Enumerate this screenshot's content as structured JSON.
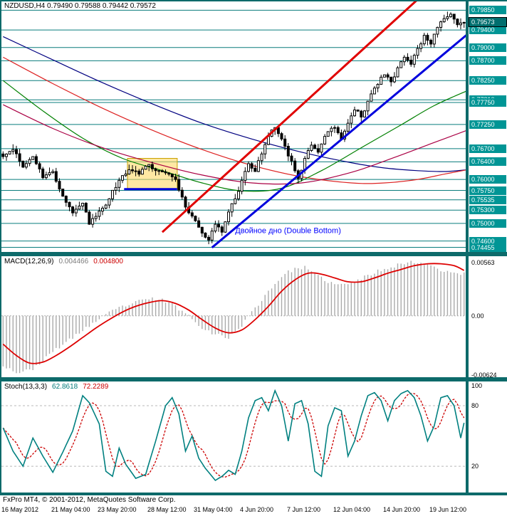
{
  "footer": {
    "copyright": "FxPro MT4, © 2001-2012, MetaQuotes Software Corp."
  },
  "colors": {
    "frame": "#0d6a6a",
    "grid_level": "#087c7c",
    "badge_bg": "#009595",
    "up_candle": "#ffffff",
    "down_candle": "#000000",
    "trend_red": "#e00000",
    "trend_blue": "#0000dd",
    "box_fill": "#ffd966",
    "box_stroke": "#c8a000",
    "macd_hist": "#aaaaaa",
    "macd_signal": "#dd0000",
    "stoch_k": "#008080",
    "stoch_d": "#cc0000",
    "annotation_blue": "#0000ff"
  },
  "chart_data": {
    "price": {
      "type": "candlestick",
      "title": "NZDUSD,H4 0.79490 0.79588 0.79442 0.79572",
      "symbol": "NZDUSD",
      "timeframe": "H4",
      "ohlc": {
        "open": "0.79490",
        "high": "0.79588",
        "low": "0.79442",
        "close": "0.79572"
      },
      "y_range": [
        0.7435,
        0.8005
      ],
      "bars": 140,
      "noise": {
        "seed": 11,
        "close_amp": 0.0011,
        "wick_amp": 0.0012
      },
      "close_anchors": [
        [
          0,
          0.7652
        ],
        [
          3,
          0.7668
        ],
        [
          6,
          0.7628
        ],
        [
          9,
          0.7652
        ],
        [
          12,
          0.7604
        ],
        [
          15,
          0.7618
        ],
        [
          18,
          0.7562
        ],
        [
          21,
          0.7524
        ],
        [
          24,
          0.7546
        ],
        [
          26,
          0.7498
        ],
        [
          29,
          0.7528
        ],
        [
          32,
          0.7556
        ],
        [
          35,
          0.7598
        ],
        [
          38,
          0.7622
        ],
        [
          41,
          0.7612
        ],
        [
          44,
          0.7634
        ],
        [
          47,
          0.762
        ],
        [
          50,
          0.7612
        ],
        [
          52,
          0.76
        ],
        [
          54,
          0.756
        ],
        [
          56,
          0.7524
        ],
        [
          58,
          0.7506
        ],
        [
          60,
          0.7478
        ],
        [
          62,
          0.7462
        ],
        [
          64,
          0.7498
        ],
        [
          66,
          0.748
        ],
        [
          68,
          0.7526
        ],
        [
          70,
          0.7556
        ],
        [
          72,
          0.7598
        ],
        [
          74,
          0.7636
        ],
        [
          76,
          0.7618
        ],
        [
          78,
          0.7658
        ],
        [
          80,
          0.7698
        ],
        [
          82,
          0.7718
        ],
        [
          84,
          0.7692
        ],
        [
          87,
          0.7642
        ],
        [
          89,
          0.7602
        ],
        [
          91,
          0.7648
        ],
        [
          93,
          0.7678
        ],
        [
          95,
          0.7662
        ],
        [
          97,
          0.7698
        ],
        [
          100,
          0.7718
        ],
        [
          102,
          0.7692
        ],
        [
          104,
          0.7728
        ],
        [
          106,
          0.7758
        ],
        [
          108,
          0.7742
        ],
        [
          110,
          0.7778
        ],
        [
          112,
          0.7808
        ],
        [
          115,
          0.7838
        ],
        [
          117,
          0.7822
        ],
        [
          119,
          0.7854
        ],
        [
          121,
          0.7878
        ],
        [
          123,
          0.7862
        ],
        [
          125,
          0.7898
        ],
        [
          127,
          0.7928
        ],
        [
          129,
          0.7908
        ],
        [
          131,
          0.7946
        ],
        [
          133,
          0.7966
        ],
        [
          135,
          0.7976
        ],
        [
          137,
          0.7952
        ],
        [
          139,
          0.79572
        ]
      ],
      "levels": [
        {
          "label": "0.79850",
          "price": 0.7985
        },
        {
          "label": "0.79400",
          "price": 0.794
        },
        {
          "label": "0.79000",
          "price": 0.79
        },
        {
          "label": "0.78700",
          "price": 0.787
        },
        {
          "label": "0.78250",
          "price": 0.7825
        },
        {
          "label": "0.77810",
          "price": 0.7781
        },
        {
          "label": "0.77750",
          "price": 0.7775
        },
        {
          "label": "0.77250",
          "price": 0.7725
        },
        {
          "label": "0.76700",
          "price": 0.767
        },
        {
          "label": "0.76400",
          "price": 0.764
        },
        {
          "label": "0.76000",
          "price": 0.76
        },
        {
          "label": "0.75750",
          "price": 0.7575
        },
        {
          "label": "0.75535",
          "price": 0.75535
        },
        {
          "label": "0.75300",
          "price": 0.753
        },
        {
          "label": "0.75000",
          "price": 0.75
        },
        {
          "label": "0.74600",
          "price": 0.746
        },
        {
          "label": "0.74455",
          "price": 0.74455
        }
      ],
      "current_price": {
        "label": "0.79573",
        "price": 0.79573
      },
      "moving_averages": [
        {
          "name": "ma-navy",
          "color": "#000080",
          "anchors": [
            [
              0,
              0.7925
            ],
            [
              15,
              0.7872
            ],
            [
              30,
              0.782
            ],
            [
              45,
              0.7772
            ],
            [
              60,
              0.7728
            ],
            [
              75,
              0.7692
            ],
            [
              90,
              0.7662
            ],
            [
              105,
              0.7638
            ],
            [
              115,
              0.7626
            ],
            [
              125,
              0.762
            ],
            [
              133,
              0.7618
            ],
            [
              140,
              0.7622
            ]
          ]
        },
        {
          "name": "ma-red",
          "color": "#dd2222",
          "anchors": [
            [
              0,
              0.7878
            ],
            [
              15,
              0.7818
            ],
            [
              30,
              0.7762
            ],
            [
              45,
              0.7712
            ],
            [
              60,
              0.7668
            ],
            [
              75,
              0.7632
            ],
            [
              90,
              0.7606
            ],
            [
              105,
              0.7592
            ],
            [
              115,
              0.7592
            ],
            [
              125,
              0.76
            ],
            [
              133,
              0.7612
            ],
            [
              140,
              0.7622
            ]
          ]
        },
        {
          "name": "ma-green",
          "color": "#008000",
          "anchors": [
            [
              0,
              0.7825
            ],
            [
              12,
              0.7756
            ],
            [
              24,
              0.7694
            ],
            [
              36,
              0.7648
            ],
            [
              48,
              0.762
            ],
            [
              60,
              0.7592
            ],
            [
              72,
              0.7574
            ],
            [
              84,
              0.758
            ],
            [
              96,
              0.762
            ],
            [
              108,
              0.7672
            ],
            [
              120,
              0.7724
            ],
            [
              130,
              0.7768
            ],
            [
              140,
              0.7802
            ]
          ]
        },
        {
          "name": "ma-crimson",
          "color": "#aa0044",
          "anchors": [
            [
              0,
              0.777
            ],
            [
              15,
              0.7716
            ],
            [
              30,
              0.7672
            ],
            [
              45,
              0.7638
            ],
            [
              60,
              0.761
            ],
            [
              75,
              0.7592
            ],
            [
              90,
              0.7592
            ],
            [
              105,
              0.7616
            ],
            [
              118,
              0.765
            ],
            [
              130,
              0.7684
            ],
            [
              140,
              0.7712
            ]
          ]
        }
      ],
      "trendlines": [
        {
          "name": "trendline-red",
          "color": "#e00000",
          "width": 3,
          "from": [
            48,
            0.748
          ],
          "to": [
            128,
            0.803
          ]
        },
        {
          "name": "trendline-blue",
          "color": "#0000dd",
          "width": 3,
          "from": [
            63,
            0.7445
          ],
          "to": [
            140,
            0.793
          ]
        }
      ],
      "support_segment": {
        "price": 0.7578,
        "from_bar": 36.5,
        "to_bar": 52.5,
        "width": 3
      },
      "pattern_box": {
        "from_bar": 38,
        "to_bar": 53,
        "price_top": 0.7648,
        "price_bottom": 0.7578
      },
      "annotation": {
        "text": "Двойное дно (Double Bottom)",
        "bar": 70,
        "price": 0.7478
      },
      "x_ticks": [
        {
          "label": "16 May 2012",
          "bar": 0
        },
        {
          "label": "21 May 04:00",
          "bar": 15
        },
        {
          "label": "23 May 20:00",
          "bar": 29
        },
        {
          "label": "28 May 12:00",
          "bar": 44
        },
        {
          "label": "31 May 04:00",
          "bar": 58
        },
        {
          "label": "4 Jun 20:00",
          "bar": 72
        },
        {
          "label": "7 Jun 12:00",
          "bar": 86
        },
        {
          "label": "12 Jun 04:00",
          "bar": 100
        },
        {
          "label": "14 Jun 20:00",
          "bar": 115
        },
        {
          "label": "19 Jun 12:00",
          "bar": 129
        }
      ]
    },
    "macd": {
      "type": "bar+line",
      "label": "MACD(12,26,9)",
      "value_main": "0.004466",
      "value_signal": "0.004800",
      "y_range": [
        -0.0065,
        0.0063
      ],
      "noise_seed": 23,
      "axis_labels": [
        {
          "text": "0.00563",
          "value": 0.00563
        },
        {
          "text": "0.00",
          "value": 0.0
        },
        {
          "text": "-0.00624",
          "value": -0.00624
        }
      ],
      "macd_anchors": [
        [
          0,
          -0.0052
        ],
        [
          4,
          -0.006
        ],
        [
          8,
          -0.0058
        ],
        [
          12,
          -0.0048
        ],
        [
          16,
          -0.0035
        ],
        [
          20,
          -0.0026
        ],
        [
          24,
          -0.0015
        ],
        [
          28,
          -0.0006
        ],
        [
          32,
          0.0003
        ],
        [
          36,
          0.001
        ],
        [
          40,
          0.0014
        ],
        [
          44,
          0.0018
        ],
        [
          48,
          0.0017
        ],
        [
          52,
          0.001
        ],
        [
          56,
          0.0
        ],
        [
          60,
          -0.0012
        ],
        [
          64,
          -0.002
        ],
        [
          68,
          -0.0023
        ],
        [
          72,
          -0.001
        ],
        [
          76,
          0.0008
        ],
        [
          80,
          0.0026
        ],
        [
          84,
          0.0042
        ],
        [
          88,
          0.005
        ],
        [
          91,
          0.0051
        ],
        [
          94,
          0.0044
        ],
        [
          97,
          0.0038
        ],
        [
          100,
          0.0033
        ],
        [
          104,
          0.0033
        ],
        [
          108,
          0.0039
        ],
        [
          112,
          0.0046
        ],
        [
          116,
          0.0051
        ],
        [
          120,
          0.0055
        ],
        [
          124,
          0.0057
        ],
        [
          128,
          0.0055
        ],
        [
          131,
          0.005
        ],
        [
          134,
          0.0047
        ],
        [
          137,
          0.0045
        ],
        [
          139,
          0.004466
        ]
      ],
      "signal_anchors": [
        [
          0,
          -0.003
        ],
        [
          4,
          -0.0042
        ],
        [
          8,
          -0.005
        ],
        [
          12,
          -0.0049
        ],
        [
          16,
          -0.0042
        ],
        [
          20,
          -0.0033
        ],
        [
          24,
          -0.0023
        ],
        [
          28,
          -0.0013
        ],
        [
          32,
          -0.0004
        ],
        [
          36,
          0.0004
        ],
        [
          40,
          0.001
        ],
        [
          44,
          0.0014
        ],
        [
          48,
          0.0016
        ],
        [
          52,
          0.0013
        ],
        [
          56,
          0.0006
        ],
        [
          60,
          -0.0004
        ],
        [
          64,
          -0.0013
        ],
        [
          68,
          -0.0018
        ],
        [
          72,
          -0.0015
        ],
        [
          76,
          -0.0004
        ],
        [
          80,
          0.001
        ],
        [
          84,
          0.0026
        ],
        [
          88,
          0.0038
        ],
        [
          92,
          0.0045
        ],
        [
          96,
          0.0044
        ],
        [
          100,
          0.004
        ],
        [
          104,
          0.0036
        ],
        [
          108,
          0.0036
        ],
        [
          112,
          0.004
        ],
        [
          116,
          0.0045
        ],
        [
          120,
          0.0049
        ],
        [
          124,
          0.0053
        ],
        [
          128,
          0.0055
        ],
        [
          132,
          0.0055
        ],
        [
          136,
          0.0053
        ],
        [
          139,
          0.0048
        ]
      ]
    },
    "stoch": {
      "type": "line",
      "label": "Stoch(13,3,3)",
      "value_k": "62.8618",
      "value_d": "72.2289",
      "y_range": [
        0,
        100
      ],
      "dashed_levels": [
        80,
        20
      ],
      "axis_labels": [
        {
          "text": "100",
          "value": 100
        },
        {
          "text": "80",
          "value": 80
        },
        {
          "text": "20",
          "value": 20
        }
      ],
      "k_anchors": [
        [
          0,
          58
        ],
        [
          3,
          35
        ],
        [
          6,
          20
        ],
        [
          9,
          48
        ],
        [
          12,
          30
        ],
        [
          15,
          14
        ],
        [
          18,
          34
        ],
        [
          21,
          55
        ],
        [
          24,
          90
        ],
        [
          26,
          83
        ],
        [
          29,
          62
        ],
        [
          31,
          15
        ],
        [
          33,
          10
        ],
        [
          35,
          38
        ],
        [
          37,
          22
        ],
        [
          40,
          8
        ],
        [
          43,
          12
        ],
        [
          46,
          45
        ],
        [
          49,
          80
        ],
        [
          51,
          88
        ],
        [
          53,
          72
        ],
        [
          55,
          35
        ],
        [
          57,
          50
        ],
        [
          59,
          28
        ],
        [
          61,
          18
        ],
        [
          64,
          6
        ],
        [
          66,
          10
        ],
        [
          68,
          16
        ],
        [
          70,
          12
        ],
        [
          72,
          35
        ],
        [
          74,
          68
        ],
        [
          76,
          85
        ],
        [
          78,
          88
        ],
        [
          80,
          75
        ],
        [
          82,
          95
        ],
        [
          84,
          80
        ],
        [
          86,
          45
        ],
        [
          88,
          82
        ],
        [
          90,
          85
        ],
        [
          92,
          62
        ],
        [
          94,
          15
        ],
        [
          96,
          10
        ],
        [
          98,
          60
        ],
        [
          100,
          78
        ],
        [
          102,
          75
        ],
        [
          104,
          30
        ],
        [
          106,
          45
        ],
        [
          108,
          70
        ],
        [
          110,
          90
        ],
        [
          112,
          93
        ],
        [
          114,
          85
        ],
        [
          116,
          65
        ],
        [
          118,
          85
        ],
        [
          120,
          92
        ],
        [
          122,
          95
        ],
        [
          124,
          88
        ],
        [
          126,
          70
        ],
        [
          128,
          45
        ],
        [
          130,
          60
        ],
        [
          132,
          88
        ],
        [
          134,
          90
        ],
        [
          136,
          80
        ],
        [
          138,
          48
        ],
        [
          139,
          63
        ]
      ]
    }
  }
}
